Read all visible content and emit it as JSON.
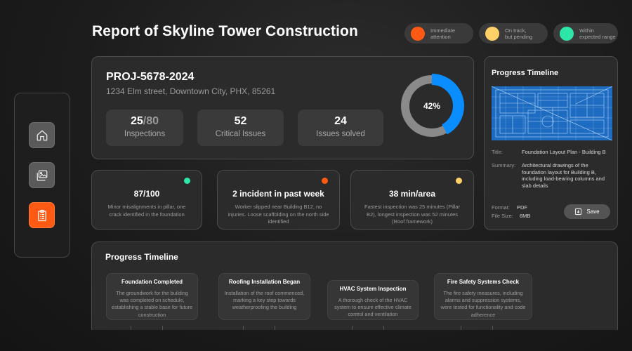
{
  "header": {
    "title": "Report of Skyline Tower Construction",
    "legend": [
      {
        "label_line1": "Immediate",
        "label_line2": "attention",
        "color": "#ff5a13"
      },
      {
        "label_line1": "On track,",
        "label_line2": "but pending",
        "color": "#ffd166"
      },
      {
        "label_line1": "Within",
        "label_line2": "expected range",
        "color": "#2ee6a8"
      }
    ]
  },
  "sidebar": {
    "items": [
      {
        "icon": "home-icon",
        "active": false
      },
      {
        "icon": "gallery-icon",
        "active": false
      },
      {
        "icon": "clipboard-icon",
        "active": true
      }
    ]
  },
  "project": {
    "id": "PROJ-5678-2024",
    "address": "1234 Elm street, Downtown City, PHX, 85261",
    "stats": [
      {
        "value": "25",
        "total": "/80",
        "label": "Inspections"
      },
      {
        "value": "52",
        "label": "Critical Issues"
      },
      {
        "value": "24",
        "label": "Issues solved"
      }
    ],
    "progress_label": "42%",
    "progress_fraction": 0.42,
    "progress_color": "#0a8eff"
  },
  "metrics": [
    {
      "value": "87/100",
      "color": "#2ee6a8",
      "description": "Minor misalignments in pillar, one crack identified in the foundation"
    },
    {
      "value": "2 incident in past week",
      "color": "#ff5a13",
      "description": "Worker slipped near Building B12, no injuries. Loose scaffolding on the north side identified"
    },
    {
      "value": "38 min/area",
      "color": "#ffd166",
      "description": "Fastest inspection was 25 minutes (Pillar B2), longest inspection was 52 minutes (Roof framework)"
    }
  ],
  "document": {
    "heading": "Progress Timeline",
    "title_key": "Title:",
    "title_value": "Foundation Layout Plan - Building B",
    "summary_key": "Summary:",
    "summary_value": "Architectural drawings of the foundation layout for Building B, including load-bearing columns and slab details",
    "format_key": "Format:",
    "format_value": "PDF",
    "size_key": "File Size:",
    "size_value": "6MB",
    "save_label": "Save"
  },
  "timeline": {
    "heading": "Progress Timeline",
    "items": [
      {
        "title": "Foundation Completed",
        "description": "The groundwork for the building was completed on schedule, establishing a stable base for future construction"
      },
      {
        "title": "Roofing Installation Began",
        "description": "Installation of the roof commenced, marking a key step towards weatherproofing the building"
      },
      {
        "title": "HVAC System Inspection",
        "description": "A thorough check of the HVAC system to ensure effective climate control and ventilation"
      },
      {
        "title": "Fire Safety Systems Check",
        "description": "The fire safety measures, including alarms and suppression systems, were tested for functionality and code adherence"
      }
    ]
  }
}
